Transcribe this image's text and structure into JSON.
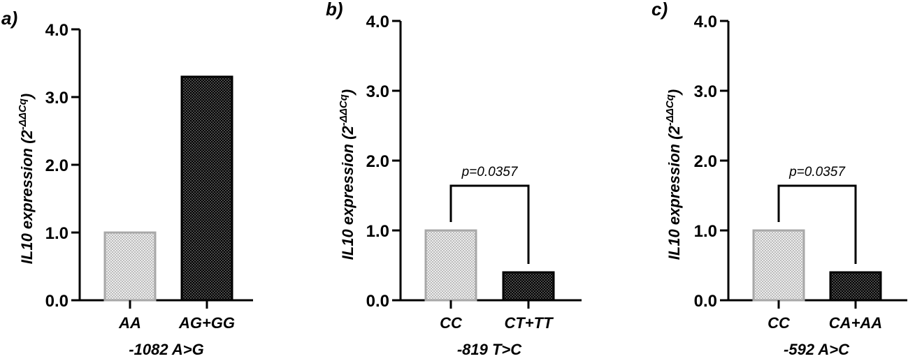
{
  "chart_data": [
    {
      "type": "bar",
      "panel": "a)",
      "categories": [
        "AA",
        "AG+GG"
      ],
      "values": [
        1.0,
        3.3
      ],
      "xlabel": "-1082 A>G",
      "ylabel_main": "IL10 expression (2",
      "ylabel_sup": "-ΔΔCq",
      "ylabel_close": ")",
      "ylim": [
        0,
        4
      ],
      "yticks": [
        "0.0",
        "1.0",
        "2.0",
        "3.0",
        "4.0"
      ],
      "significance": null
    },
    {
      "type": "bar",
      "panel": "b)",
      "categories": [
        "CC",
        "CT+TT"
      ],
      "values": [
        1.0,
        0.4
      ],
      "xlabel": "-819 T>C",
      "ylabel_main": "IL10 expression (2",
      "ylabel_sup": "-ΔΔCq",
      "ylabel_close": ")",
      "ylim": [
        0,
        4
      ],
      "yticks": [
        "0.0",
        "1.0",
        "2.0",
        "3.0",
        "4.0"
      ],
      "significance": "p=0.0357"
    },
    {
      "type": "bar",
      "panel": "c)",
      "categories": [
        "CC",
        "CA+AA"
      ],
      "values": [
        1.0,
        0.4
      ],
      "xlabel": "-592 A>C",
      "ylabel_main": "IL10 expression (2",
      "ylabel_sup": "-ΔΔCq",
      "ylabel_close": ")",
      "ylim": [
        0,
        4
      ],
      "yticks": [
        "0.0",
        "1.0",
        "2.0",
        "3.0",
        "4.0"
      ],
      "significance": "p=0.0357"
    }
  ],
  "colors": {
    "axis": "#000000",
    "bar_light_border": "#a8a8a8",
    "bar_light_fill": "#d8d8d8",
    "bar_dark_border": "#000000",
    "bar_dark_fill": "#2a2a2a"
  }
}
